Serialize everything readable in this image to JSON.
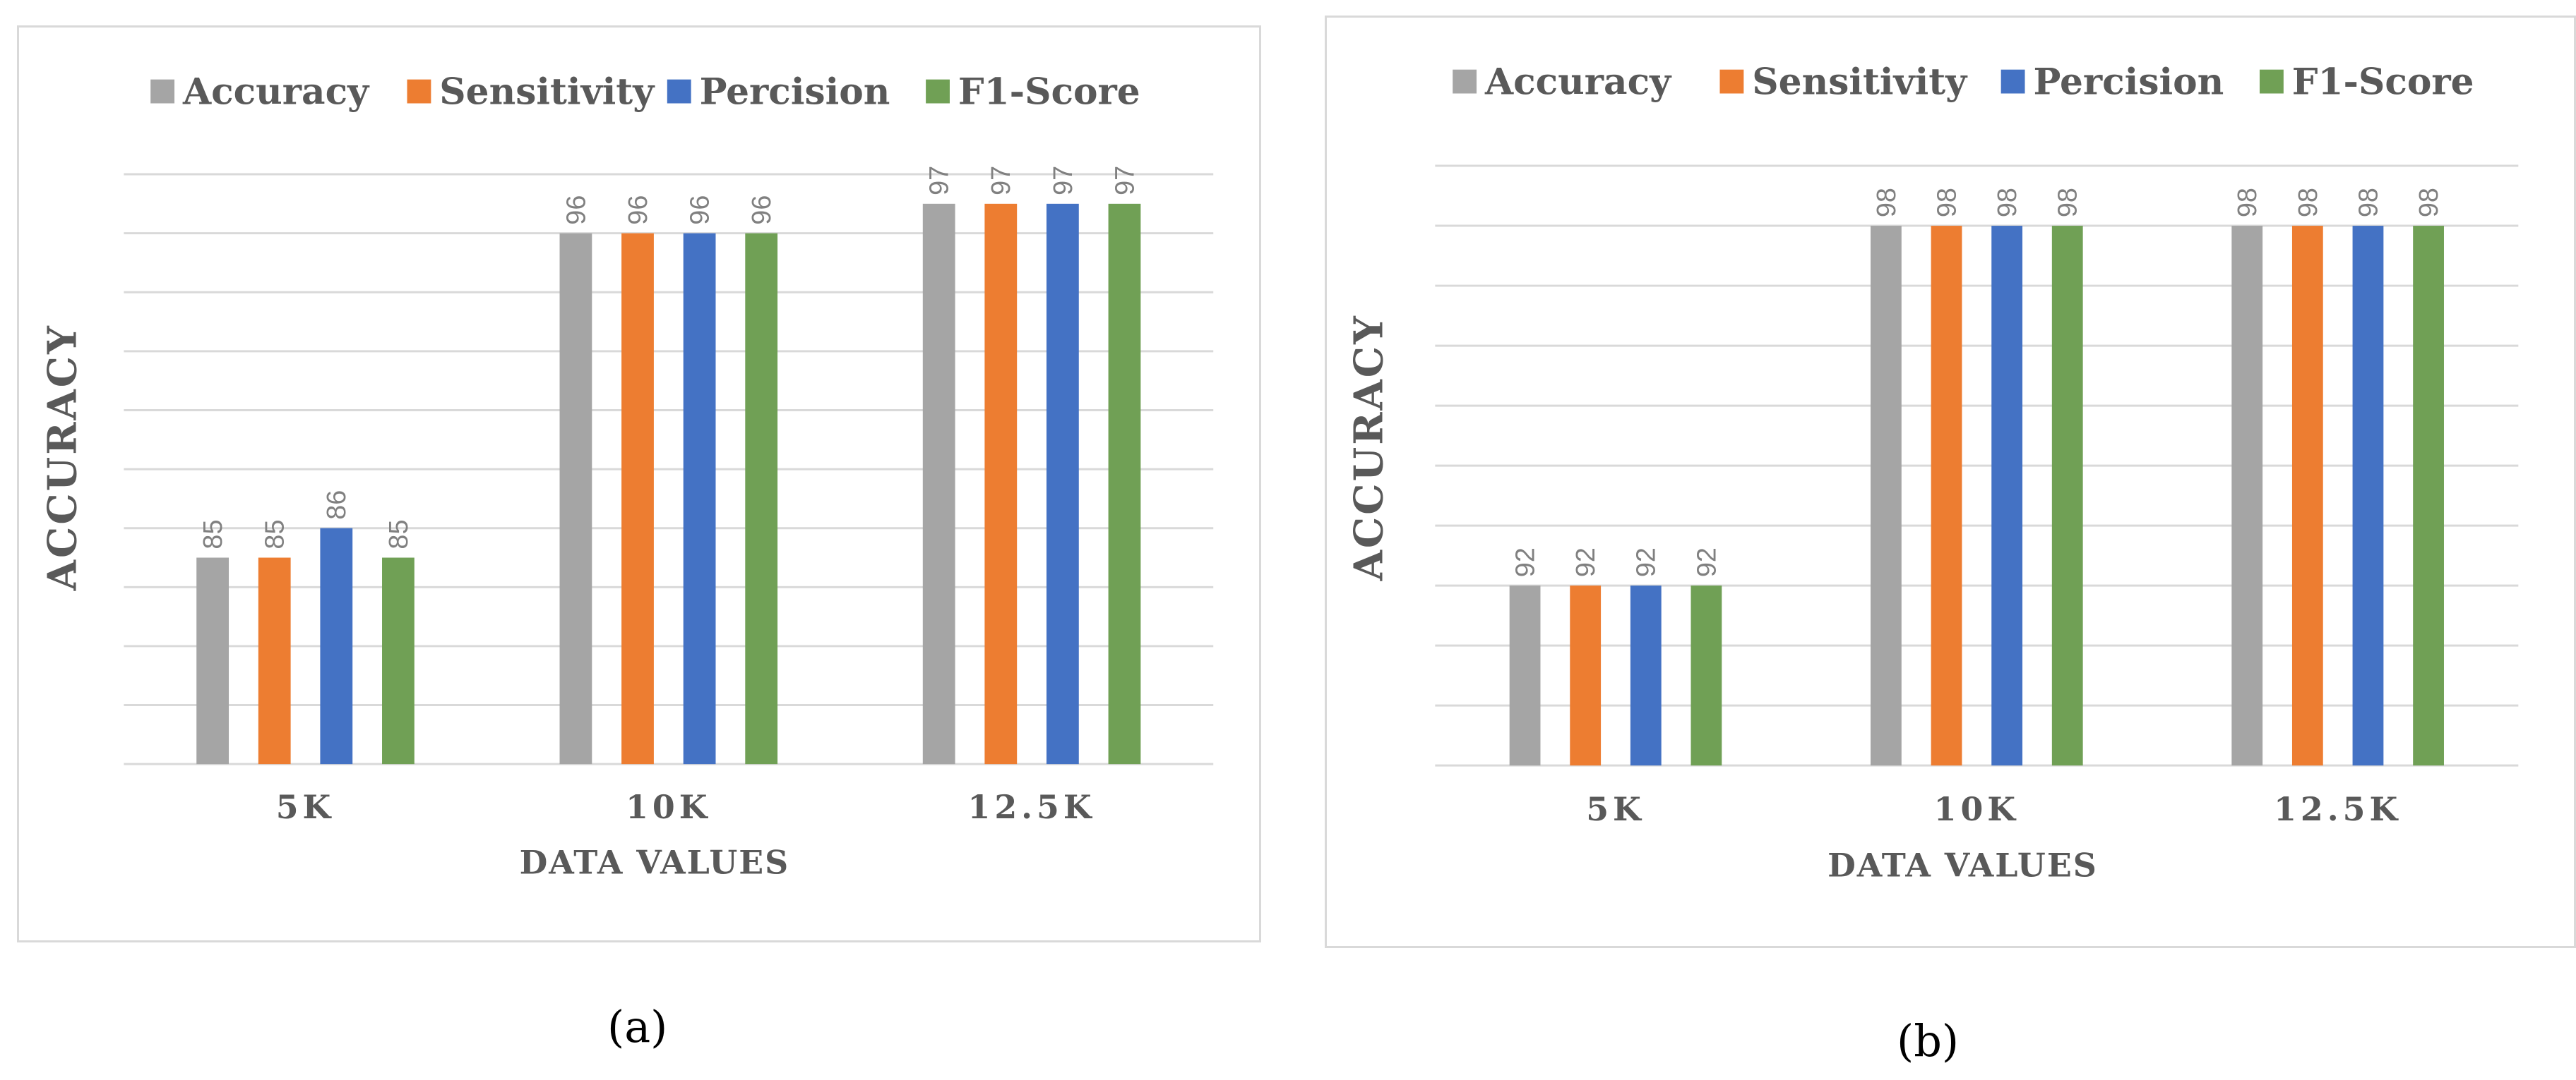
{
  "colors": {
    "accuracy": "#a5a5a5",
    "sensitivity": "#ed7d31",
    "percision": "#4472c4",
    "f1": "#70a055",
    "grid": "#d9d9d9",
    "label": "#808080",
    "axis_text": "#595959"
  },
  "captions": {
    "a": "(a)",
    "b": "(b)"
  },
  "chart_data": [
    {
      "id": "a",
      "type": "bar",
      "title": "",
      "xlabel": "DATA VALUES",
      "ylabel": "ACCURACY",
      "categories": [
        "5K",
        "10K",
        "12.5K"
      ],
      "series": [
        {
          "name": "Accuracy",
          "color_key": "accuracy",
          "values": [
            85,
            96,
            97
          ]
        },
        {
          "name": "Sensitivity",
          "color_key": "sensitivity",
          "values": [
            85,
            96,
            97
          ]
        },
        {
          "name": "Percision",
          "color_key": "percision",
          "values": [
            86,
            96,
            97
          ]
        },
        {
          "name": "F1-Score",
          "color_key": "f1",
          "values": [
            85,
            96,
            97
          ]
        }
      ],
      "ylim": [
        78,
        98
      ],
      "grid_step": 2,
      "grid": true,
      "legend_position": "top",
      "data_labels": true
    },
    {
      "id": "b",
      "type": "bar",
      "title": "",
      "xlabel": "DATA VALUES",
      "ylabel": "ACCURACY",
      "categories": [
        "5K",
        "10K",
        "12.5K"
      ],
      "series": [
        {
          "name": "Accuracy",
          "color_key": "accuracy",
          "values": [
            92,
            98,
            98
          ]
        },
        {
          "name": "Sensitivity",
          "color_key": "sensitivity",
          "values": [
            92,
            98,
            98
          ]
        },
        {
          "name": "Percision",
          "color_key": "percision",
          "values": [
            92,
            98,
            98
          ]
        },
        {
          "name": "F1-Score",
          "color_key": "f1",
          "values": [
            92,
            98,
            98
          ]
        }
      ],
      "ylim": [
        89,
        99
      ],
      "grid_step": 1,
      "grid": true,
      "legend_position": "top",
      "data_labels": true
    }
  ]
}
